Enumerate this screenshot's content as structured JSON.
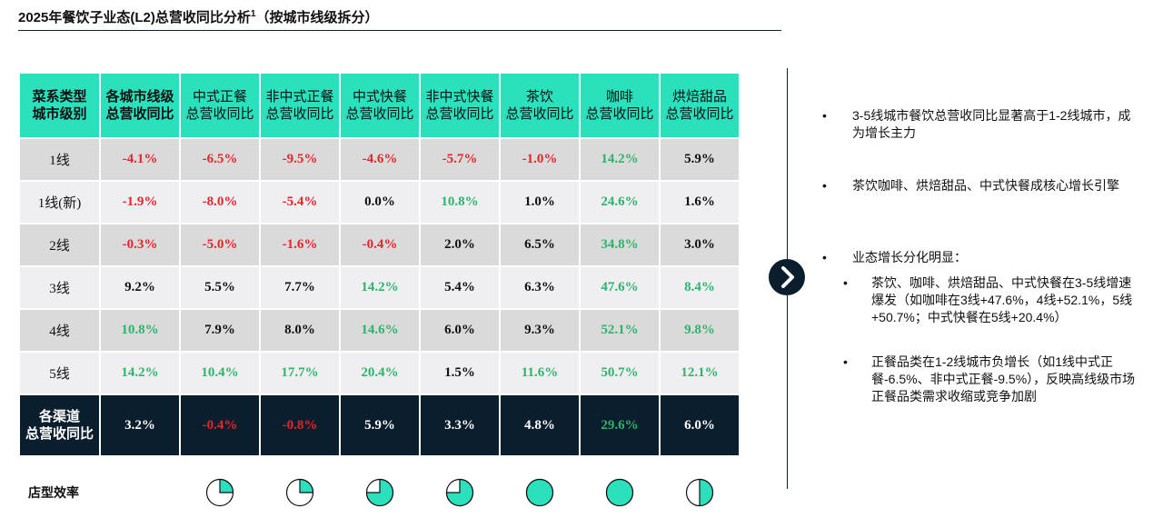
{
  "title": "2025年餐饮子业态(L2)总营收同比分析",
  "title_sup": "1",
  "title_suffix": "（按城市线级拆分）",
  "table": {
    "corner": [
      "菜系类型",
      "城市级别"
    ],
    "columns": [
      [
        "各城市线级",
        "总营收同比"
      ],
      [
        "中式正餐",
        "总营收同比"
      ],
      [
        "非中式正餐",
        "总营收同比"
      ],
      [
        "中式快餐",
        "总营收同比"
      ],
      [
        "非中式快餐",
        "总营收同比"
      ],
      [
        "茶饮",
        "总营收同比"
      ],
      [
        "咖啡",
        "总营收同比"
      ],
      [
        "烘焙甜品",
        "总营收同比"
      ]
    ],
    "rows": [
      {
        "label": "1线",
        "values": [
          "-4.1%",
          "-6.5%",
          "-9.5%",
          "-4.6%",
          "-5.7%",
          "-1.0%",
          "14.2%",
          "5.9%"
        ],
        "tones": [
          "neg",
          "neg",
          "neg",
          "neg",
          "neg",
          "neg",
          "pos",
          "neu"
        ]
      },
      {
        "label": "1线(新)",
        "values": [
          "-1.9%",
          "-8.0%",
          "-5.4%",
          "0.0%",
          "10.8%",
          "1.0%",
          "24.6%",
          "1.6%"
        ],
        "tones": [
          "neg",
          "neg",
          "neg",
          "neu",
          "pos",
          "neu",
          "pos",
          "neu"
        ]
      },
      {
        "label": "2线",
        "values": [
          "-0.3%",
          "-5.0%",
          "-1.6%",
          "-0.4%",
          "2.0%",
          "6.5%",
          "34.8%",
          "3.0%"
        ],
        "tones": [
          "neg",
          "neg",
          "neg",
          "neg",
          "neu",
          "neu",
          "pos",
          "neu"
        ]
      },
      {
        "label": "3线",
        "values": [
          "9.2%",
          "5.5%",
          "7.7%",
          "14.2%",
          "5.4%",
          "6.3%",
          "47.6%",
          "8.4%"
        ],
        "tones": [
          "neu",
          "neu",
          "neu",
          "pos",
          "neu",
          "neu",
          "pos",
          "pos"
        ]
      },
      {
        "label": "4线",
        "values": [
          "10.8%",
          "7.9%",
          "8.0%",
          "14.6%",
          "6.0%",
          "9.3%",
          "52.1%",
          "9.8%"
        ],
        "tones": [
          "pos",
          "neu",
          "neu",
          "pos",
          "neu",
          "neu",
          "pos",
          "pos"
        ]
      },
      {
        "label": "5线",
        "values": [
          "14.2%",
          "10.4%",
          "17.7%",
          "20.4%",
          "1.5%",
          "11.6%",
          "50.7%",
          "12.1%"
        ],
        "tones": [
          "pos",
          "pos",
          "pos",
          "pos",
          "neu",
          "pos",
          "pos",
          "pos"
        ]
      }
    ],
    "total": {
      "label": [
        "各渠道",
        "总营收同比"
      ],
      "values": [
        "3.2%",
        "-0.4%",
        "-0.8%",
        "5.9%",
        "3.3%",
        "4.8%",
        "29.6%",
        "6.0%"
      ],
      "tones": [
        "neu",
        "neg",
        "neg",
        "neu",
        "neu",
        "neu",
        "pos",
        "neu"
      ]
    }
  },
  "efficiency": {
    "label": "店型效率",
    "fills": [
      0.25,
      0.25,
      0.75,
      0.75,
      1.0,
      1.0,
      0.5
    ]
  },
  "colors": {
    "header": "#2be0bd",
    "navy": "#0b1e2d",
    "negative": "#e3262b",
    "positive": "#2db46c",
    "pie_fill": "#2be0bd"
  },
  "arrow_icon": "chevron-right-icon",
  "notes": {
    "bullets": [
      "3-5线城市餐饮总营收同比显著高于1-2线城市，成为增长主力",
      "茶饮咖啡、烘焙甜品、中式快餐成核心增长引擎",
      "业态增长分化明显："
    ],
    "sub_bullets": [
      "茶饮、咖啡、烘焙甜品、中式快餐在3-5线增速爆发（如咖啡在3线+47.6%，4线+52.1%，5线+50.7%；中式快餐在5线+20.4%）",
      "正餐品类在1-2线城市负增长（如1线中式正餐-6.5%、非中式正餐-9.5%），反映高线级市场正餐品类需求收缩或竞争加剧"
    ],
    "bullet_char": "•"
  }
}
